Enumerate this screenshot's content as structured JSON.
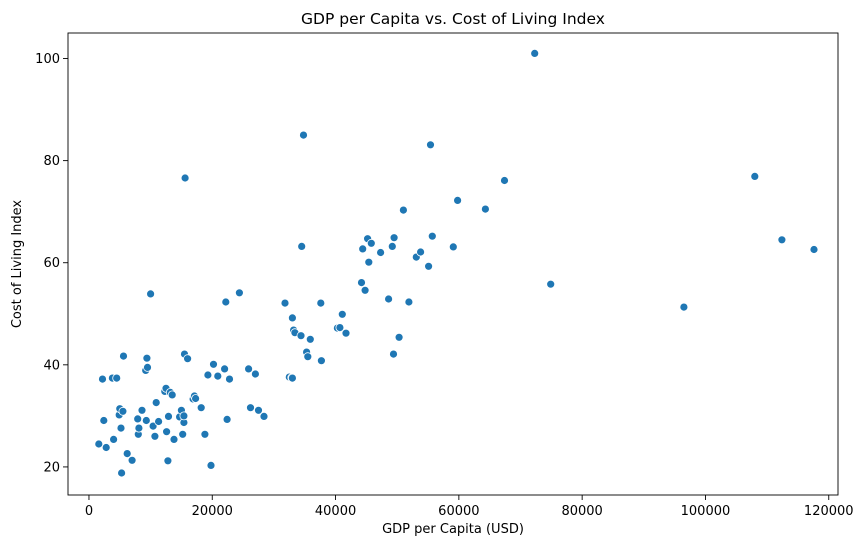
{
  "chart_data": {
    "type": "scatter",
    "title": "GDP per Capita vs. Cost of Living Index",
    "xlabel": "GDP per Capita (USD)",
    "ylabel": "Cost of Living Index",
    "xlim": [
      -3400,
      121500
    ],
    "ylim": [
      14.5,
      105.0
    ],
    "xticks": [
      0,
      20000,
      40000,
      60000,
      80000,
      100000,
      120000
    ],
    "yticks": [
      20,
      40,
      60,
      80,
      100
    ],
    "grid": false,
    "legend": "none",
    "marker_color": "#1f77b4",
    "points": [
      [
        1600,
        24.5
      ],
      [
        2200,
        37.2
      ],
      [
        2400,
        29.1
      ],
      [
        2800,
        23.8
      ],
      [
        3800,
        37.4
      ],
      [
        4000,
        25.4
      ],
      [
        4500,
        37.4
      ],
      [
        4900,
        30.2
      ],
      [
        5000,
        31.4
      ],
      [
        5200,
        27.6
      ],
      [
        5300,
        18.8
      ],
      [
        5500,
        30.9
      ],
      [
        5600,
        41.7
      ],
      [
        6200,
        22.6
      ],
      [
        7000,
        21.3
      ],
      [
        7900,
        29.4
      ],
      [
        8000,
        26.4
      ],
      [
        8100,
        27.6
      ],
      [
        8600,
        31.1
      ],
      [
        9200,
        38.9
      ],
      [
        9300,
        29.1
      ],
      [
        9400,
        41.3
      ],
      [
        9500,
        39.5
      ],
      [
        10000,
        53.9
      ],
      [
        10400,
        28.0
      ],
      [
        10700,
        26.0
      ],
      [
        10900,
        32.6
      ],
      [
        11300,
        28.9
      ],
      [
        12300,
        34.8
      ],
      [
        12500,
        35.4
      ],
      [
        12600,
        26.9
      ],
      [
        12800,
        21.2
      ],
      [
        12900,
        29.9
      ],
      [
        13200,
        34.6
      ],
      [
        13500,
        34.1
      ],
      [
        13800,
        25.4
      ],
      [
        14700,
        29.8
      ],
      [
        15000,
        31.1
      ],
      [
        15200,
        26.4
      ],
      [
        15400,
        28.7
      ],
      [
        15400,
        30.0
      ],
      [
        15500,
        42.1
      ],
      [
        15600,
        76.6
      ],
      [
        16000,
        41.2
      ],
      [
        16900,
        33.3
      ],
      [
        17100,
        33.9
      ],
      [
        17300,
        33.4
      ],
      [
        18200,
        31.6
      ],
      [
        18800,
        26.4
      ],
      [
        19300,
        38.0
      ],
      [
        19800,
        20.3
      ],
      [
        20200,
        40.1
      ],
      [
        20900,
        37.8
      ],
      [
        22000,
        39.2
      ],
      [
        22200,
        52.3
      ],
      [
        22400,
        29.3
      ],
      [
        22800,
        37.2
      ],
      [
        24400,
        54.1
      ],
      [
        25900,
        39.2
      ],
      [
        26200,
        31.6
      ],
      [
        27000,
        38.2
      ],
      [
        27500,
        31.1
      ],
      [
        28400,
        29.9
      ],
      [
        31800,
        52.1
      ],
      [
        32500,
        37.6
      ],
      [
        32900,
        37.5
      ],
      [
        33000,
        49.2
      ],
      [
        33000,
        37.4
      ],
      [
        33200,
        46.8
      ],
      [
        33400,
        46.3
      ],
      [
        34400,
        45.7
      ],
      [
        34500,
        63.2
      ],
      [
        34800,
        85.0
      ],
      [
        35300,
        42.5
      ],
      [
        35500,
        41.6
      ],
      [
        35900,
        45.0
      ],
      [
        37600,
        52.1
      ],
      [
        37700,
        40.8
      ],
      [
        40300,
        47.2
      ],
      [
        40700,
        47.3
      ],
      [
        41100,
        49.9
      ],
      [
        41700,
        46.2
      ],
      [
        44200,
        56.1
      ],
      [
        44400,
        62.7
      ],
      [
        44800,
        54.6
      ],
      [
        45200,
        64.7
      ],
      [
        45400,
        60.1
      ],
      [
        45800,
        63.8
      ],
      [
        47300,
        62.0
      ],
      [
        48600,
        52.9
      ],
      [
        49200,
        63.2
      ],
      [
        49400,
        42.1
      ],
      [
        49500,
        64.9
      ],
      [
        50300,
        45.4
      ],
      [
        51000,
        70.3
      ],
      [
        51900,
        52.3
      ],
      [
        53100,
        61.1
      ],
      [
        53800,
        62.1
      ],
      [
        55100,
        59.3
      ],
      [
        55400,
        83.1
      ],
      [
        55700,
        65.2
      ],
      [
        59100,
        63.1
      ],
      [
        59800,
        72.2
      ],
      [
        64300,
        70.5
      ],
      [
        67400,
        76.1
      ],
      [
        72300,
        101.0
      ],
      [
        74900,
        55.8
      ],
      [
        96500,
        51.3
      ],
      [
        108000,
        76.9
      ],
      [
        112400,
        64.5
      ],
      [
        117600,
        62.6
      ]
    ]
  }
}
